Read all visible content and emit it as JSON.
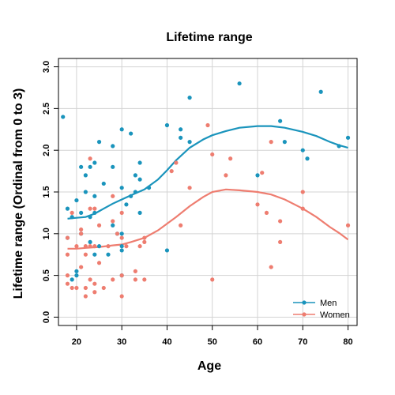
{
  "chart_data": {
    "type": "scatter",
    "title": "Lifetime range",
    "xlabel": "Age",
    "ylabel": "Lifetime range (Ordinal from 0 to 3)",
    "xlim": [
      16,
      82
    ],
    "ylim": [
      -0.1,
      3.1
    ],
    "x_ticks": [
      20,
      30,
      40,
      50,
      60,
      70,
      80
    ],
    "y_ticks": [
      0.0,
      0.5,
      1.0,
      1.5,
      2.0,
      2.5,
      3.0
    ],
    "y_tick_labels": [
      "0.0",
      "0.5",
      "1.0",
      "1.5",
      "2.0",
      "2.5",
      "3.0"
    ],
    "grid": true,
    "legend_position": "bottom-right",
    "series": [
      {
        "name": "Men",
        "color": "#1a94bc",
        "points": [
          [
            17,
            2.4
          ],
          [
            18,
            1.3
          ],
          [
            18,
            0.95
          ],
          [
            19,
            1.2
          ],
          [
            19,
            0.45
          ],
          [
            20,
            1.4
          ],
          [
            20,
            0.55
          ],
          [
            20,
            0.5
          ],
          [
            21,
            1.8
          ],
          [
            21,
            1.25
          ],
          [
            21,
            1.0
          ],
          [
            22,
            1.7
          ],
          [
            22,
            1.5
          ],
          [
            23,
            1.8
          ],
          [
            23,
            1.2
          ],
          [
            23,
            0.9
          ],
          [
            24,
            1.85
          ],
          [
            24,
            1.45
          ],
          [
            24,
            1.25
          ],
          [
            24,
            0.75
          ],
          [
            25,
            2.1
          ],
          [
            25,
            0.85
          ],
          [
            26,
            1.6
          ],
          [
            27,
            0.75
          ],
          [
            28,
            2.05
          ],
          [
            28,
            1.8
          ],
          [
            28,
            1.1
          ],
          [
            29,
            1.0
          ],
          [
            30,
            2.25
          ],
          [
            30,
            1.55
          ],
          [
            30,
            1.0
          ],
          [
            30,
            0.85
          ],
          [
            30,
            0.8
          ],
          [
            30,
            0.5
          ],
          [
            31,
            1.35
          ],
          [
            32,
            2.2
          ],
          [
            32,
            1.45
          ],
          [
            33,
            1.7
          ],
          [
            33,
            1.5
          ],
          [
            34,
            1.85
          ],
          [
            34,
            1.65
          ],
          [
            34,
            1.25
          ],
          [
            36,
            1.55
          ],
          [
            40,
            2.3
          ],
          [
            40,
            0.8
          ],
          [
            43,
            2.25
          ],
          [
            43,
            2.15
          ],
          [
            45,
            2.63
          ],
          [
            45,
            2.1
          ],
          [
            56,
            2.8
          ],
          [
            60,
            1.7
          ],
          [
            65,
            2.35
          ],
          [
            66,
            2.1
          ],
          [
            70,
            2.0
          ],
          [
            71,
            1.9
          ],
          [
            74,
            2.7
          ],
          [
            78,
            2.05
          ],
          [
            80,
            2.15
          ]
        ],
        "trend": [
          [
            18,
            1.18
          ],
          [
            20,
            1.19
          ],
          [
            22,
            1.2
          ],
          [
            24,
            1.24
          ],
          [
            26,
            1.3
          ],
          [
            28,
            1.36
          ],
          [
            30,
            1.41
          ],
          [
            32,
            1.46
          ],
          [
            35,
            1.53
          ],
          [
            38,
            1.65
          ],
          [
            40,
            1.76
          ],
          [
            42,
            1.88
          ],
          [
            45,
            2.03
          ],
          [
            48,
            2.13
          ],
          [
            50,
            2.18
          ],
          [
            53,
            2.23
          ],
          [
            56,
            2.27
          ],
          [
            60,
            2.29
          ],
          [
            63,
            2.29
          ],
          [
            66,
            2.27
          ],
          [
            70,
            2.22
          ],
          [
            73,
            2.17
          ],
          [
            76,
            2.1
          ],
          [
            78,
            2.06
          ],
          [
            80,
            2.03
          ]
        ]
      },
      {
        "name": "Women",
        "color": "#ee7d70",
        "points": [
          [
            18,
            0.95
          ],
          [
            18,
            0.75
          ],
          [
            18,
            0.5
          ],
          [
            18,
            0.4
          ],
          [
            19,
            1.25
          ],
          [
            19,
            0.35
          ],
          [
            20,
            0.85
          ],
          [
            20,
            0.35
          ],
          [
            21,
            1.05
          ],
          [
            21,
            1.0
          ],
          [
            21,
            0.6
          ],
          [
            22,
            0.85
          ],
          [
            22,
            0.75
          ],
          [
            22,
            0.35
          ],
          [
            22,
            0.25
          ],
          [
            23,
            1.9
          ],
          [
            23,
            1.3
          ],
          [
            23,
            0.85
          ],
          [
            23,
            0.45
          ],
          [
            24,
            1.3
          ],
          [
            24,
            0.85
          ],
          [
            24,
            0.4
          ],
          [
            24,
            0.3
          ],
          [
            25,
            1.1
          ],
          [
            25,
            0.65
          ],
          [
            26,
            0.35
          ],
          [
            27,
            0.85
          ],
          [
            28,
            1.45
          ],
          [
            28,
            1.15
          ],
          [
            28,
            0.45
          ],
          [
            29,
            1.0
          ],
          [
            30,
            1.25
          ],
          [
            30,
            0.95
          ],
          [
            30,
            0.5
          ],
          [
            30,
            0.25
          ],
          [
            31,
            0.85
          ],
          [
            33,
            0.55
          ],
          [
            33,
            0.45
          ],
          [
            34,
            0.85
          ],
          [
            35,
            0.95
          ],
          [
            35,
            0.9
          ],
          [
            35,
            0.45
          ],
          [
            41,
            1.75
          ],
          [
            42,
            1.85
          ],
          [
            43,
            1.1
          ],
          [
            45,
            1.55
          ],
          [
            49,
            2.3
          ],
          [
            50,
            1.95
          ],
          [
            50,
            0.45
          ],
          [
            53,
            1.7
          ],
          [
            54,
            1.9
          ],
          [
            60,
            1.35
          ],
          [
            61,
            1.73
          ],
          [
            62,
            1.25
          ],
          [
            63,
            2.1
          ],
          [
            63,
            0.6
          ],
          [
            65,
            1.15
          ],
          [
            65,
            0.9
          ],
          [
            70,
            1.5
          ],
          [
            70,
            1.3
          ],
          [
            80,
            1.1
          ]
        ],
        "trend": [
          [
            18,
            0.82
          ],
          [
            20,
            0.82
          ],
          [
            22,
            0.83
          ],
          [
            25,
            0.84
          ],
          [
            28,
            0.86
          ],
          [
            30,
            0.87
          ],
          [
            32,
            0.9
          ],
          [
            35,
            0.95
          ],
          [
            38,
            1.04
          ],
          [
            40,
            1.12
          ],
          [
            42,
            1.2
          ],
          [
            45,
            1.33
          ],
          [
            48,
            1.44
          ],
          [
            50,
            1.5
          ],
          [
            53,
            1.53
          ],
          [
            56,
            1.52
          ],
          [
            60,
            1.5
          ],
          [
            63,
            1.47
          ],
          [
            66,
            1.41
          ],
          [
            70,
            1.3
          ],
          [
            73,
            1.2
          ],
          [
            76,
            1.08
          ],
          [
            78,
            1.01
          ],
          [
            80,
            0.93
          ]
        ]
      }
    ]
  }
}
